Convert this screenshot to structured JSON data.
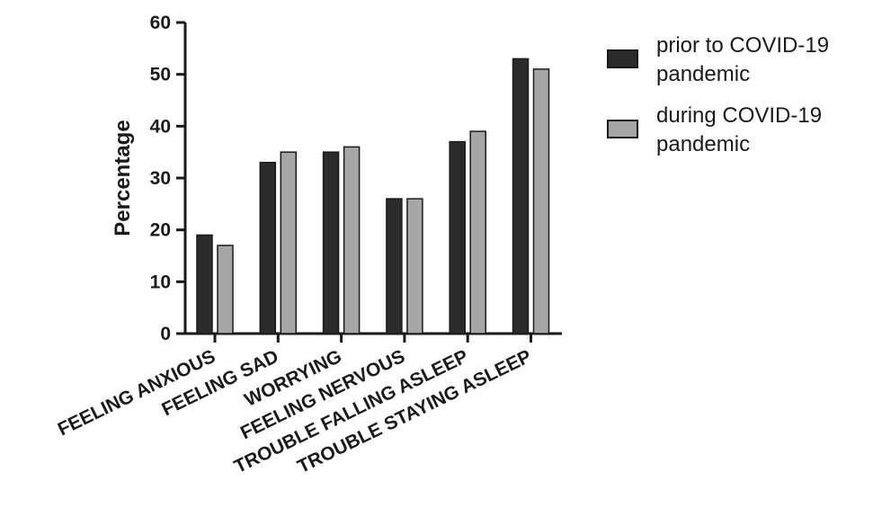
{
  "chart_data": {
    "type": "bar",
    "title": "",
    "xlabel": "",
    "ylabel": "Percentage",
    "ylim": [
      0,
      60
    ],
    "yticks": [
      "0",
      "10",
      "20",
      "30",
      "40",
      "50",
      "60"
    ],
    "categories": [
      "FEELING ANXIOUS",
      "FEELING SAD",
      "WORRYING",
      "FEELING NERVOUS",
      "TROUBLE FALLING ASLEEP",
      "TROUBLE STAYING ASLEEP"
    ],
    "series": [
      {
        "name": "prior to COVID-19 pandemic",
        "legend_lines": [
          "prior to COVID-19",
          "pandemic"
        ],
        "color": "#2b2b2b",
        "values": [
          19,
          33,
          35,
          26,
          37,
          53
        ]
      },
      {
        "name": "during COVID-19 pandemic",
        "legend_lines": [
          "during COVID-19",
          "pandemic"
        ],
        "color": "#a6a6a6",
        "values": [
          17,
          35,
          36,
          26,
          39,
          51
        ]
      }
    ],
    "grid": false,
    "legend_position": "top-right"
  }
}
